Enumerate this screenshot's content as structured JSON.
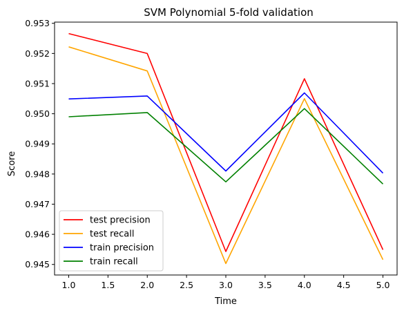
{
  "chart_data": {
    "type": "line",
    "title": "SVM Polynomial 5-fold validation",
    "xlabel": "Time",
    "ylabel": "Score",
    "x": [
      1.0,
      2.0,
      3.0,
      4.0,
      5.0
    ],
    "xlim": [
      0.82,
      5.18
    ],
    "ylim": [
      0.94465,
      0.95304
    ],
    "xticks": [
      1.0,
      1.5,
      2.0,
      2.5,
      3.0,
      3.5,
      4.0,
      4.5,
      5.0
    ],
    "xtick_labels": [
      "1.0",
      "1.5",
      "2.0",
      "2.5",
      "3.0",
      "3.5",
      "4.0",
      "4.5",
      "5.0"
    ],
    "yticks": [
      0.945,
      0.946,
      0.947,
      0.948,
      0.949,
      0.95,
      0.951,
      0.952,
      0.953
    ],
    "ytick_labels": [
      "0.945",
      "0.946",
      "0.947",
      "0.948",
      "0.949",
      "0.950",
      "0.951",
      "0.952",
      "0.953"
    ],
    "grid": false,
    "legend_position": "lower-left",
    "series": [
      {
        "name": "test precision",
        "color": "#ff0000",
        "values": [
          0.95266,
          0.952,
          0.94543,
          0.95116,
          0.94549
        ]
      },
      {
        "name": "test recall",
        "color": "#ffa500",
        "values": [
          0.95222,
          0.95142,
          0.94503,
          0.9505,
          0.94516
        ]
      },
      {
        "name": "train precision",
        "color": "#0000ff",
        "values": [
          0.95049,
          0.95059,
          0.9481,
          0.95069,
          0.94803
        ]
      },
      {
        "name": "train recall",
        "color": "#008000",
        "values": [
          0.9499,
          0.95004,
          0.94774,
          0.95017,
          0.94767
        ]
      }
    ]
  }
}
